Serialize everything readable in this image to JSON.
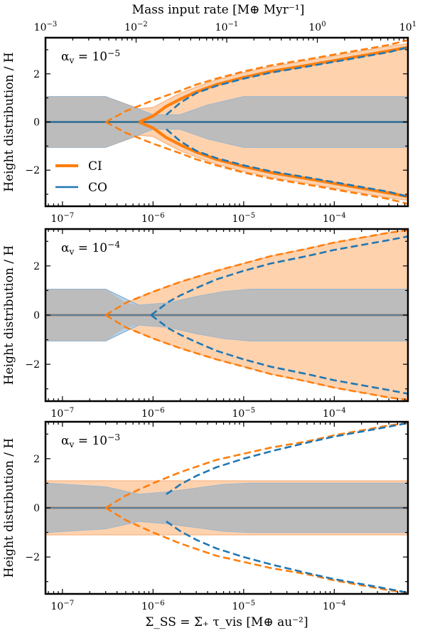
{
  "figure": {
    "top_axis_label": "Mass input rate [M⊕ Myr⁻¹]",
    "bottom_axis_label": "Σ_SS = Σ̇₊ τ_vis [M⊕ au⁻²]",
    "y_axis_label": "Height distribution / H",
    "colors": {
      "CI": "#ff7f0e",
      "CO": "#1f77b4",
      "CI_fill": "#ffd2ae",
      "CO_fill": "#b7d3ea",
      "overlap_fill": "#bcbcbc"
    }
  },
  "chart_data": [
    {
      "type": "area",
      "panel_label": "α_v = 10^-5",
      "xscale": "log",
      "xlabel": "Σ_SS = Σ̇₊ τ_vis [M⊕ au⁻²]",
      "xlim": [
        6.5e-08,
        0.00065
      ],
      "ylabel": "Height distribution / H",
      "ylim": [
        -3.5,
        3.5
      ],
      "top_xlabel": "Mass input rate [M⊕ Myr⁻¹]",
      "top_xlim": [
        0.001,
        10
      ],
      "top_xticks": [
        "10^-3",
        "10^-2",
        "10^-1",
        "10^0",
        "10^1"
      ],
      "xticks": [
        "10^-7",
        "10^-6",
        "10^-5",
        "10^-4"
      ],
      "yticks": [
        "−2",
        "0",
        "2"
      ],
      "legend": {
        "position": "lower-left",
        "entries": [
          "CI",
          "CO"
        ]
      },
      "series": [
        {
          "name": "CI",
          "x": [
            6.5e-08,
            3e-07,
            7e-07,
            1e-06,
            1.4e-06,
            2e-06,
            3e-06,
            5e-06,
            1e-05,
            2e-05,
            5e-05,
            0.0001,
            0.0002,
            0.0004,
            0.00065
          ],
          "band_upper": [
            1.05,
            1.05,
            0.55,
            0.6,
            0.9,
            1.2,
            1.45,
            1.75,
            2.05,
            2.3,
            2.55,
            2.75,
            2.95,
            3.15,
            3.25
          ],
          "band_lower": [
            -1.05,
            -1.05,
            -0.55,
            -0.6,
            -0.9,
            -1.2,
            -1.45,
            -1.75,
            -2.05,
            -2.3,
            -2.55,
            -2.75,
            -2.95,
            -3.15,
            -3.25
          ],
          "solid_x": [
            7e-07,
            1e-06,
            1.4e-06,
            2e-06,
            3e-06,
            5e-06,
            1e-05,
            2e-05,
            5e-05,
            0.0001,
            0.0002,
            0.0004,
            0.00065
          ],
          "solid": [
            0.0,
            0.25,
            0.65,
            0.95,
            1.25,
            1.55,
            1.85,
            2.1,
            2.35,
            2.55,
            2.75,
            2.95,
            3.1
          ],
          "dashed_x": [
            3e-07,
            5e-07,
            1e-06,
            2e-06,
            3e-06,
            5e-06,
            1e-05,
            2e-05,
            5e-05,
            0.0001,
            0.0002,
            0.0004,
            0.00065
          ],
          "dashed": [
            0.0,
            0.45,
            0.9,
            1.3,
            1.55,
            1.8,
            2.1,
            2.35,
            2.6,
            2.8,
            3.0,
            3.2,
            3.4
          ]
        },
        {
          "name": "CO",
          "x": [
            6.5e-08,
            3e-07,
            1e-06,
            2e-06,
            4e-06,
            1e-05,
            0.00065
          ],
          "band_upper": [
            1.05,
            1.05,
            0.3,
            0.3,
            0.7,
            1.05,
            1.05
          ],
          "band_lower": [
            -1.05,
            -1.05,
            -0.3,
            -0.3,
            -0.7,
            -1.05,
            -1.05
          ],
          "solid_x": [
            6.5e-08,
            0.00065
          ],
          "solid": [
            0.0,
            0.0
          ],
          "dashed_x": [
            1.4e-06,
            2e-06,
            3e-06,
            5e-06,
            1e-05,
            2e-05,
            5e-05,
            0.0001,
            0.0002,
            0.0004,
            0.00065
          ],
          "dashed": [
            0.3,
            0.8,
            1.2,
            1.5,
            1.8,
            2.05,
            2.3,
            2.5,
            2.7,
            2.9,
            3.1
          ]
        }
      ]
    },
    {
      "type": "area",
      "panel_label": "α_v = 10^-4",
      "xscale": "log",
      "xlim": [
        6.5e-08,
        0.00065
      ],
      "ylabel": "Height distribution / H",
      "ylim": [
        -3.5,
        3.5
      ],
      "xticks": [
        "10^-7",
        "10^-6",
        "10^-5",
        "10^-4"
      ],
      "yticks": [
        "−2",
        "0",
        "2"
      ],
      "series": [
        {
          "name": "CI",
          "x": [
            6.5e-08,
            3e-07,
            5e-07,
            1e-06,
            2e-06,
            5e-06,
            1e-05,
            2e-05,
            5e-05,
            0.0001,
            0.0002,
            0.0004,
            0.00065
          ],
          "band_upper": [
            1.05,
            1.05,
            0.5,
            0.95,
            1.35,
            1.8,
            2.1,
            2.4,
            2.7,
            2.95,
            3.15,
            3.35,
            3.45
          ],
          "band_lower": [
            -1.05,
            -1.05,
            -0.5,
            -0.95,
            -1.35,
            -1.8,
            -2.1,
            -2.4,
            -2.7,
            -2.95,
            -3.15,
            -3.35,
            -3.45
          ],
          "solid_x": [
            6.5e-08,
            0.00065
          ],
          "solid": [
            0.0,
            0.0
          ],
          "dashed_x": [
            3e-07,
            5e-07,
            1e-06,
            2e-06,
            5e-06,
            1e-05,
            2e-05,
            5e-05,
            0.0001,
            0.0002,
            0.0004,
            0.00065
          ],
          "dashed": [
            0.0,
            0.5,
            0.95,
            1.35,
            1.8,
            2.1,
            2.4,
            2.7,
            2.95,
            3.15,
            3.35,
            3.45
          ]
        },
        {
          "name": "CO",
          "x": [
            6.5e-08,
            3e-07,
            7e-07,
            1.5e-06,
            3e-06,
            6e-06,
            1.2e-05,
            0.00065
          ],
          "band_upper": [
            1.05,
            1.05,
            0.4,
            0.5,
            0.75,
            0.95,
            1.05,
            1.05
          ],
          "band_lower": [
            -1.05,
            -1.05,
            -0.4,
            -0.5,
            -0.75,
            -0.95,
            -1.05,
            -1.05
          ],
          "solid_x": [
            6.5e-08,
            0.00065
          ],
          "solid": [
            0.0,
            0.0
          ],
          "dashed_x": [
            9.5e-07,
            1.5e-06,
            2e-06,
            3e-06,
            5e-06,
            1e-05,
            2e-05,
            5e-05,
            0.0001,
            0.0002,
            0.0004,
            0.00065
          ],
          "dashed": [
            0.0,
            0.55,
            0.8,
            1.1,
            1.45,
            1.8,
            2.1,
            2.4,
            2.65,
            2.85,
            3.05,
            3.2
          ]
        }
      ]
    },
    {
      "type": "area",
      "panel_label": "α_v = 10^-3",
      "xscale": "log",
      "xlim": [
        6.5e-08,
        0.00065
      ],
      "xlabel": "Σ_SS = Σ̇₊ τ_vis [M⊕ au⁻²]",
      "ylabel": "Height distribution / H",
      "ylim": [
        -3.5,
        3.5
      ],
      "xticks": [
        "10^-7",
        "10^-6",
        "10^-5",
        "10^-4"
      ],
      "yticks": [
        "−2",
        "0",
        "2"
      ],
      "series": [
        {
          "name": "CI",
          "x": [
            6.5e-08,
            3e-07,
            0.00065
          ],
          "band_upper": [
            1.1,
            1.1,
            1.1
          ],
          "band_lower": [
            -1.1,
            -1.1,
            -1.1
          ],
          "solid_x": [
            6.5e-08,
            0.00065
          ],
          "solid": [
            0.0,
            0.0
          ],
          "dashed_x": [
            3e-07,
            5e-07,
            1e-06,
            2e-06,
            5e-06,
            1e-05,
            2e-05,
            5e-05,
            0.0001,
            0.0002,
            0.0004,
            0.00065
          ],
          "dashed": [
            0.0,
            0.5,
            1.0,
            1.45,
            1.95,
            2.2,
            2.45,
            2.7,
            2.95,
            3.15,
            3.35,
            3.45
          ]
        },
        {
          "name": "CO",
          "x": [
            6.5e-08,
            3e-07,
            7e-07,
            1.5e-06,
            3e-06,
            6e-06,
            1.2e-05,
            0.00065
          ],
          "band_upper": [
            1.0,
            0.85,
            0.55,
            0.65,
            0.8,
            0.95,
            1.0,
            1.0
          ],
          "band_lower": [
            -1.0,
            -0.85,
            -0.55,
            -0.65,
            -0.8,
            -0.95,
            -1.0,
            -1.0
          ],
          "solid_x": [
            6.5e-08,
            0.00065
          ],
          "solid": [
            0.0,
            0.0
          ],
          "dashed_x": [
            1.4e-06,
            2e-06,
            3e-06,
            5e-06,
            1e-05,
            2e-05,
            5e-05,
            0.0001,
            0.0002,
            0.0004,
            0.00065
          ],
          "dashed": [
            0.55,
            0.95,
            1.3,
            1.65,
            2.0,
            2.3,
            2.65,
            2.9,
            3.1,
            3.3,
            3.45
          ]
        }
      ]
    }
  ]
}
